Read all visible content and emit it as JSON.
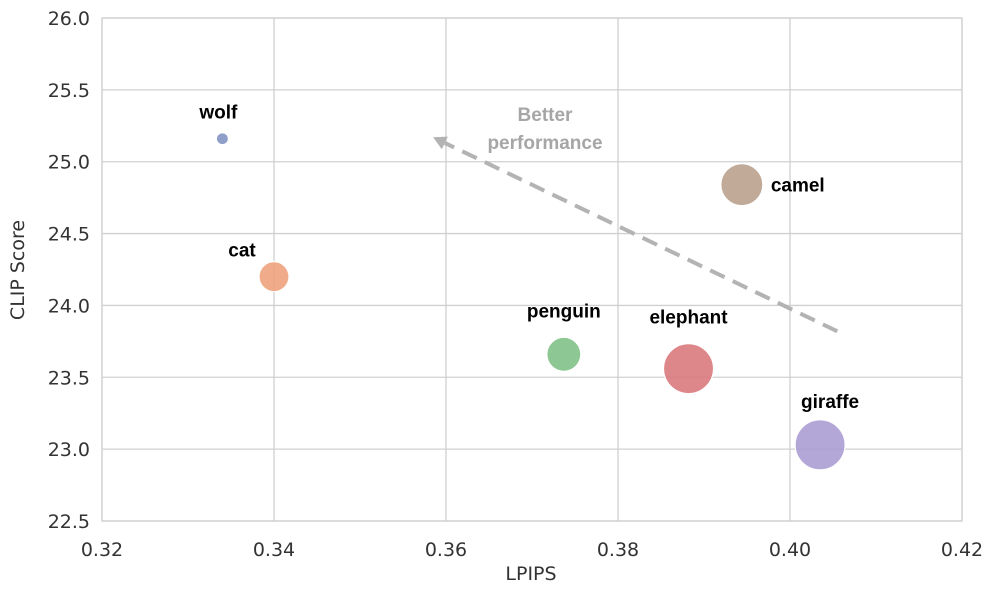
{
  "chart_data": {
    "type": "scatter",
    "title": "",
    "xlabel": "LPIPS",
    "ylabel": "CLIP Score",
    "xlim": [
      0.32,
      0.42
    ],
    "ylim": [
      22.5,
      26.0
    ],
    "xticks": [
      "0.32",
      "0.34",
      "0.36",
      "0.38",
      "0.40",
      "0.42"
    ],
    "xtick_values": [
      0.32,
      0.34,
      0.36,
      0.38,
      0.4,
      0.42
    ],
    "yticks": [
      "22.5",
      "23.0",
      "23.5",
      "24.0",
      "24.5",
      "25.0",
      "25.5",
      "26.0"
    ],
    "ytick_values": [
      22.5,
      23.0,
      23.5,
      24.0,
      24.5,
      25.0,
      25.5,
      26.0
    ],
    "grid": true,
    "points": [
      {
        "label": "wolf",
        "x": 0.334,
        "y": 25.16,
        "size": 1,
        "color": "#7f92c2"
      },
      {
        "label": "cat",
        "x": 0.34,
        "y": 24.2,
        "size": 2,
        "color": "#eea07a"
      },
      {
        "label": "penguin",
        "x": 0.3737,
        "y": 23.66,
        "size": 3,
        "color": "#7cbf85"
      },
      {
        "label": "elephant",
        "x": 0.3882,
        "y": 23.56,
        "size": 5,
        "color": "#d9767a"
      },
      {
        "label": "camel",
        "x": 0.3944,
        "y": 24.84,
        "size": 4,
        "color": "#b89f8a"
      },
      {
        "label": "giraffe",
        "x": 0.4035,
        "y": 23.03,
        "size": 5,
        "color": "#a99bd1"
      }
    ],
    "annotation": {
      "lines": [
        "Better",
        "performance"
      ],
      "arrow_from": [
        0.4055,
        23.82
      ],
      "arrow_to": [
        0.3585,
        25.17
      ],
      "color": "#b3b3b3"
    }
  }
}
